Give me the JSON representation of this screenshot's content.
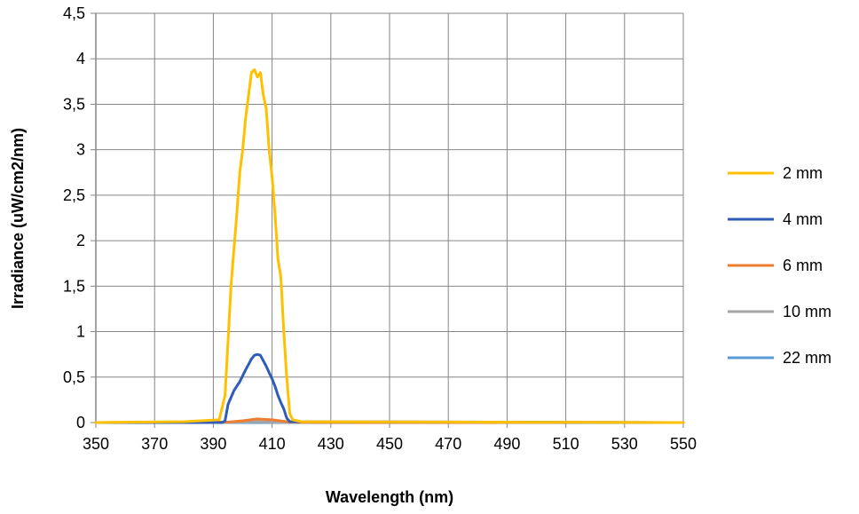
{
  "chart_data": {
    "type": "line",
    "xlabel": "Wavelength (nm)",
    "ylabel": "Irradiance  (uW/cm2/nm)",
    "xlim": [
      350,
      550
    ],
    "ylim": [
      0,
      4.5
    ],
    "x_ticks": [
      "350",
      "370",
      "390",
      "410",
      "430",
      "450",
      "470",
      "490",
      "510",
      "530",
      "550"
    ],
    "y_ticks": [
      "0",
      "0,5",
      "1",
      "1,5",
      "2",
      "2,5",
      "3",
      "3,5",
      "4",
      "4,5"
    ],
    "grid": true,
    "legend_position": "right",
    "series": [
      {
        "name": "2 mm",
        "color": "#FFC000",
        "x": [
          350,
          380,
          392,
          394,
          395,
          396,
          397,
          398,
          399,
          400,
          401,
          402,
          403,
          404,
          405,
          406,
          407,
          408,
          409,
          410,
          411,
          412,
          413,
          414,
          415,
          416,
          417,
          420,
          550
        ],
        "y": [
          0,
          0.01,
          0.03,
          0.3,
          0.9,
          1.5,
          1.9,
          2.3,
          2.75,
          3.0,
          3.35,
          3.6,
          3.85,
          3.88,
          3.8,
          3.85,
          3.6,
          3.45,
          3.0,
          2.7,
          2.3,
          1.8,
          1.6,
          1.0,
          0.5,
          0.1,
          0.03,
          0.01,
          0
        ]
      },
      {
        "name": "4 mm",
        "color": "#2E5CB8",
        "x": [
          350,
          393,
          394,
          395,
          397,
          399,
          401,
          403,
          404,
          405,
          406,
          407,
          408,
          409,
          410,
          411,
          412,
          413,
          414,
          415,
          416,
          550
        ],
        "y": [
          0,
          0,
          0.02,
          0.2,
          0.35,
          0.45,
          0.58,
          0.7,
          0.74,
          0.75,
          0.74,
          0.68,
          0.62,
          0.55,
          0.48,
          0.4,
          0.3,
          0.22,
          0.15,
          0.05,
          0.01,
          0
        ]
      },
      {
        "name": "6 mm",
        "color": "#ED7D31",
        "x": [
          350,
          395,
          400,
          405,
          410,
          415,
          420,
          550
        ],
        "y": [
          0,
          0.005,
          0.02,
          0.04,
          0.03,
          0.01,
          0.002,
          0
        ]
      },
      {
        "name": "10 mm",
        "color": "#A5A5A5",
        "x": [
          350,
          395,
          405,
          415,
          550
        ],
        "y": [
          0,
          0.003,
          0.01,
          0.003,
          0
        ]
      },
      {
        "name": "22 mm",
        "color": "#5B9BD5",
        "x": [
          350,
          550
        ],
        "y": [
          0,
          0
        ]
      }
    ]
  }
}
